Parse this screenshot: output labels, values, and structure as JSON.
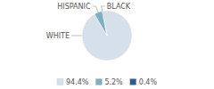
{
  "chart_data": {
    "type": "pie",
    "categories": [
      "WHITE",
      "HISPANIC",
      "BLACK"
    ],
    "values": [
      94.4,
      5.2,
      0.4
    ],
    "value_labels": [
      "94.4%",
      "5.2%",
      "0.4%"
    ],
    "colors": [
      "#d6e0ea",
      "#7aafc4",
      "#2d5f8a"
    ],
    "legend": "bottom"
  }
}
